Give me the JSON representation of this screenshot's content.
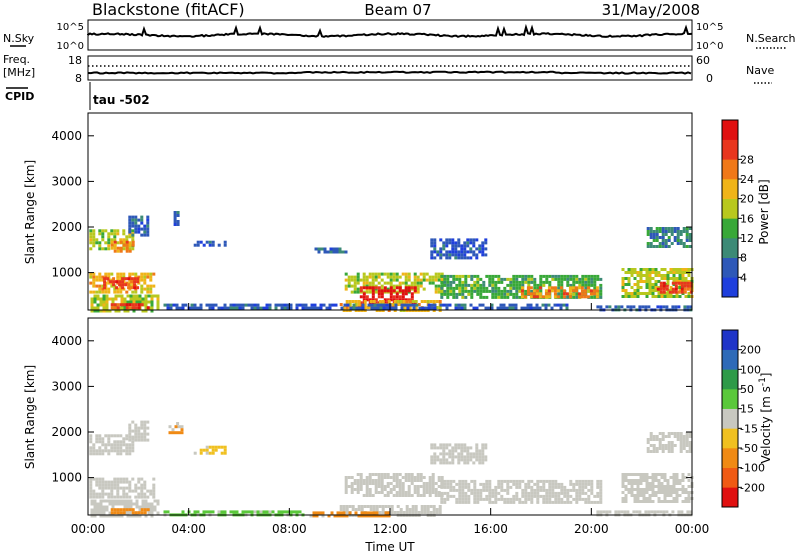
{
  "header": {
    "station": "Blackstone (fitACF)",
    "beam": "Beam 07",
    "date": "31/May/2008"
  },
  "top_panel": {
    "left_label": "N.Sky",
    "right_label": "N.Search",
    "tick_top": "10^5",
    "tick_bottom": "10^0"
  },
  "freq_panel": {
    "left_label": "Freq.",
    "left_unit": "[MHz]",
    "left_top": "18",
    "left_bottom": "8",
    "right_label": "Nave",
    "right_top": "60",
    "right_bottom": "0",
    "cpid_label": "CPID",
    "cpid_value": "tau  -502"
  },
  "colors": {
    "power": [
      "#1f3fdc",
      "#2e58b8",
      "#3c8a76",
      "#38a838",
      "#b8c81e",
      "#f0b418",
      "#f07818",
      "#e8361e",
      "#e01010"
    ],
    "velocity": [
      "#e01010",
      "#f05a14",
      "#f08a14",
      "#f0c020",
      "#c8c8c0",
      "#5ac83a",
      "#2e9a48",
      "#2e6ab8",
      "#1f34c8"
    ],
    "ground_scatter": "#c8c8c0"
  },
  "chart_data": [
    {
      "type": "heatmap",
      "title": "Power",
      "xlabel": "",
      "ylabel": "Slant Range [km]",
      "colorbar_label": "Power [dB]",
      "colorbar_ticks": [
        "4",
        "8",
        "12",
        "16",
        "20",
        "24",
        "28"
      ],
      "y_ticks": [
        "1000",
        "2000",
        "3000",
        "4000"
      ],
      "ylim": [
        180,
        4500
      ],
      "xlim_hours": [
        0,
        24
      ],
      "regions": [
        {
          "t0": 0.05,
          "t1": 2.6,
          "r0": 600,
          "r1": 1000,
          "level": 5
        },
        {
          "t0": 0.6,
          "t1": 2.0,
          "r0": 700,
          "r1": 900,
          "level": 7
        },
        {
          "t0": 0.05,
          "t1": 1.8,
          "r0": 1550,
          "r1": 1950,
          "level": 4
        },
        {
          "t0": 0.9,
          "t1": 1.8,
          "r0": 1500,
          "r1": 1700,
          "level": 6
        },
        {
          "t0": 1.6,
          "t1": 2.4,
          "r0": 1850,
          "r1": 2250,
          "level": 1
        },
        {
          "t0": 0.1,
          "t1": 2.8,
          "r0": 190,
          "r1": 520,
          "level": 4
        },
        {
          "t0": 0.9,
          "t1": 2.4,
          "r0": 200,
          "r1": 330,
          "level": 7
        },
        {
          "t0": 3.4,
          "t1": 3.6,
          "r0": 2050,
          "r1": 2350,
          "level": 1
        },
        {
          "t0": 4.2,
          "t1": 5.4,
          "r0": 1600,
          "r1": 1700,
          "level": 1
        },
        {
          "t0": 9.0,
          "t1": 10.2,
          "r0": 1450,
          "r1": 1550,
          "level": 1
        },
        {
          "t0": 10.2,
          "t1": 14.1,
          "r0": 600,
          "r1": 1000,
          "level": 4
        },
        {
          "t0": 10.8,
          "t1": 13.0,
          "r0": 300,
          "r1": 700,
          "level": 8
        },
        {
          "t0": 10.0,
          "t1": 14.0,
          "r0": 190,
          "r1": 400,
          "level": 5
        },
        {
          "t0": 13.6,
          "t1": 15.8,
          "r0": 1350,
          "r1": 1750,
          "level": 1
        },
        {
          "t0": 14.0,
          "t1": 20.4,
          "r0": 450,
          "r1": 950,
          "level": 3
        },
        {
          "t0": 17.2,
          "t1": 20.2,
          "r0": 500,
          "r1": 700,
          "level": 6
        },
        {
          "t0": 3.0,
          "t1": 19.0,
          "r0": 190,
          "r1": 320,
          "level": 1
        },
        {
          "t0": 21.2,
          "t1": 24.0,
          "r0": 500,
          "r1": 1100,
          "level": 4
        },
        {
          "t0": 22.6,
          "t1": 24.0,
          "r0": 600,
          "r1": 800,
          "level": 7
        },
        {
          "t0": 22.2,
          "t1": 23.9,
          "r0": 1550,
          "r1": 2000,
          "level": 2
        },
        {
          "t0": 20.2,
          "t1": 24.0,
          "r0": 190,
          "r1": 280,
          "level": 1
        }
      ]
    },
    {
      "type": "heatmap",
      "title": "Velocity",
      "xlabel": "Time UT",
      "ylabel": "Slant Range [km]",
      "colorbar_label": "Velocity [m s^-1]",
      "colorbar_ticks": [
        "-200",
        "-100",
        "-50",
        "-15",
        "15",
        "50",
        "100",
        "200"
      ],
      "x_ticks": [
        "00:00",
        "04:00",
        "08:00",
        "12:00",
        "16:00",
        "20:00",
        "00:00"
      ],
      "y_ticks": [
        "1000",
        "2000",
        "3000",
        "4000"
      ],
      "ylim": [
        180,
        4500
      ],
      "xlim_hours": [
        0,
        24
      ],
      "regions": [
        {
          "t0": 0.05,
          "t1": 2.6,
          "r0": 600,
          "r1": 1000,
          "level": 4
        },
        {
          "t0": 0.05,
          "t1": 1.8,
          "r0": 1550,
          "r1": 1950,
          "level": 4
        },
        {
          "t0": 1.6,
          "t1": 2.4,
          "r0": 1850,
          "r1": 2250,
          "level": 4
        },
        {
          "t0": 0.1,
          "t1": 2.8,
          "r0": 190,
          "r1": 520,
          "level": 4
        },
        {
          "t0": 0.9,
          "t1": 2.4,
          "r0": 200,
          "r1": 330,
          "level": 2
        },
        {
          "t0": 3.2,
          "t1": 3.7,
          "r0": 2000,
          "r1": 2150,
          "level": 2
        },
        {
          "t0": 3.5,
          "t1": 3.6,
          "r0": 2200,
          "r1": 2350,
          "level": 4
        },
        {
          "t0": 4.2,
          "t1": 5.4,
          "r0": 1550,
          "r1": 1700,
          "level": 3
        },
        {
          "t0": 10.2,
          "t1": 14.1,
          "r0": 600,
          "r1": 1100,
          "level": 4
        },
        {
          "t0": 10.0,
          "t1": 14.0,
          "r0": 190,
          "r1": 400,
          "level": 4
        },
        {
          "t0": 8.8,
          "t1": 12.0,
          "r0": 190,
          "r1": 260,
          "level": 2
        },
        {
          "t0": 13.6,
          "t1": 15.8,
          "r0": 1350,
          "r1": 1750,
          "level": 4
        },
        {
          "t0": 14.0,
          "t1": 20.4,
          "r0": 450,
          "r1": 950,
          "level": 4
        },
        {
          "t0": 3.0,
          "t1": 8.5,
          "r0": 190,
          "r1": 280,
          "level": 5
        },
        {
          "t0": 21.2,
          "t1": 24.0,
          "r0": 500,
          "r1": 1100,
          "level": 4
        },
        {
          "t0": 22.2,
          "t1": 23.9,
          "r0": 1550,
          "r1": 2000,
          "level": 4
        },
        {
          "t0": 20.2,
          "t1": 24.0,
          "r0": 190,
          "r1": 280,
          "level": 4
        }
      ]
    }
  ]
}
